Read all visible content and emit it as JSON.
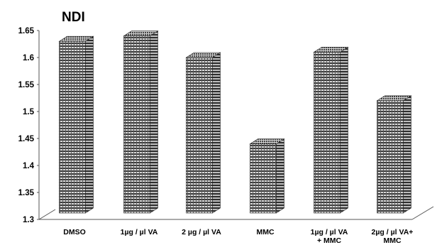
{
  "chart_data": {
    "type": "bar",
    "title": "NDI",
    "xlabel": "",
    "ylabel": "",
    "categories": [
      [
        "DMSO"
      ],
      [
        "1µg / µl VA"
      ],
      [
        "2 µg / µl  VA"
      ],
      [
        "MMC"
      ],
      [
        "1µg / µl  VA",
        "+ MMC"
      ],
      [
        "2µg / µl  VA+",
        "MMC"
      ]
    ],
    "values": [
      1.63,
      1.64,
      1.6,
      1.44,
      1.61,
      1.52
    ],
    "ylim": [
      1.3,
      1.65
    ],
    "yticks": [
      "1.3",
      "1.35",
      "1.4",
      "1.45",
      "1.5",
      "1.55",
      "1.6",
      "1.65"
    ],
    "grid": false,
    "style": "3d-column, hatched dark texture",
    "colors": {
      "bar": "#3d3d3d",
      "bar_light": "#d0d0d0"
    }
  }
}
